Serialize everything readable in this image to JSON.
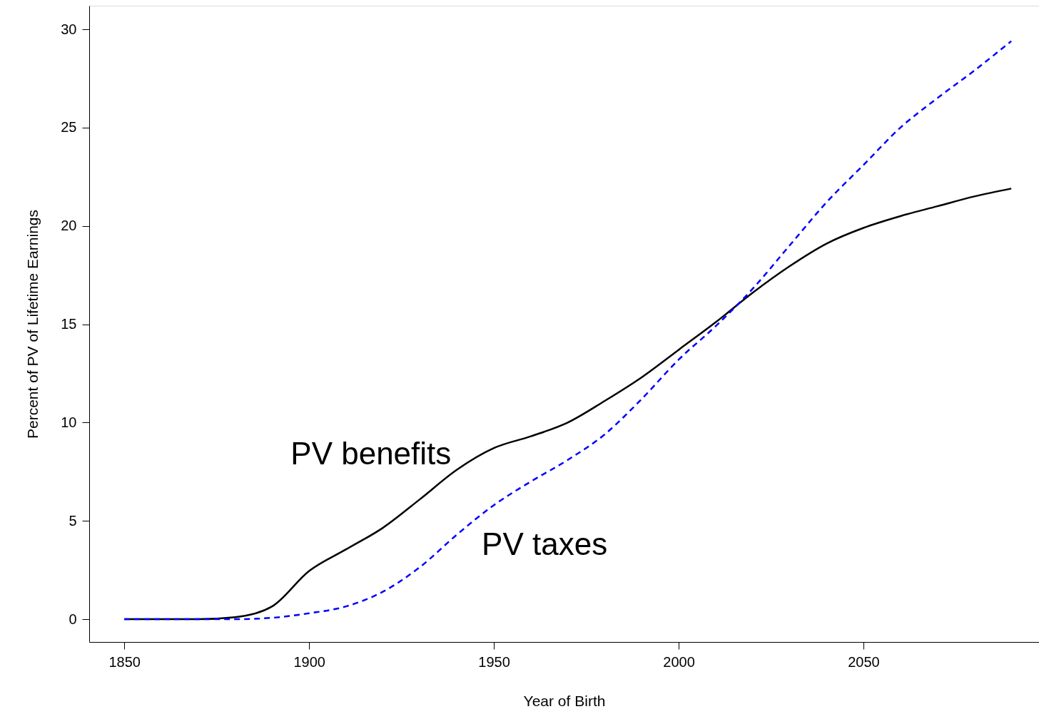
{
  "chart_data": {
    "type": "line",
    "xlabel": "Year of Birth",
    "ylabel": "Percent of PV of Lifetime Earnings",
    "x": [
      1850,
      1860,
      1870,
      1880,
      1890,
      1900,
      1910,
      1920,
      1930,
      1940,
      1950,
      1960,
      1970,
      1980,
      1990,
      2000,
      2010,
      2020,
      2030,
      2040,
      2050,
      2060,
      2070,
      2080,
      2090
    ],
    "series": [
      {
        "name": "PV benefits",
        "color": "#000000",
        "line_style": "solid",
        "values": [
          0,
          0,
          0,
          0.1,
          0.65,
          2.45,
          3.55,
          4.65,
          6.1,
          7.6,
          8.7,
          9.3,
          10.0,
          11.1,
          12.3,
          13.7,
          15.1,
          16.6,
          17.95,
          19.1,
          19.9,
          20.5,
          21.0,
          21.5,
          21.9
        ]
      },
      {
        "name": "PV taxes",
        "color": "#0000ff",
        "line_style": "dashed",
        "values": [
          0,
          0,
          0,
          0,
          0.07,
          0.3,
          0.65,
          1.4,
          2.65,
          4.3,
          5.8,
          7.0,
          8.1,
          9.4,
          11.2,
          13.2,
          14.9,
          16.8,
          19.0,
          21.2,
          23.1,
          25.0,
          26.5,
          27.9,
          29.4
        ]
      }
    ],
    "xlim": [
      1840.5,
      2097.5
    ],
    "xticks": [
      1850,
      1900,
      1950,
      2000,
      2050
    ],
    "ylim": [
      -1.16,
      31.2
    ],
    "yticks": [
      0,
      5,
      10,
      15,
      20,
      25,
      30
    ],
    "grid": false,
    "legend": false
  }
}
